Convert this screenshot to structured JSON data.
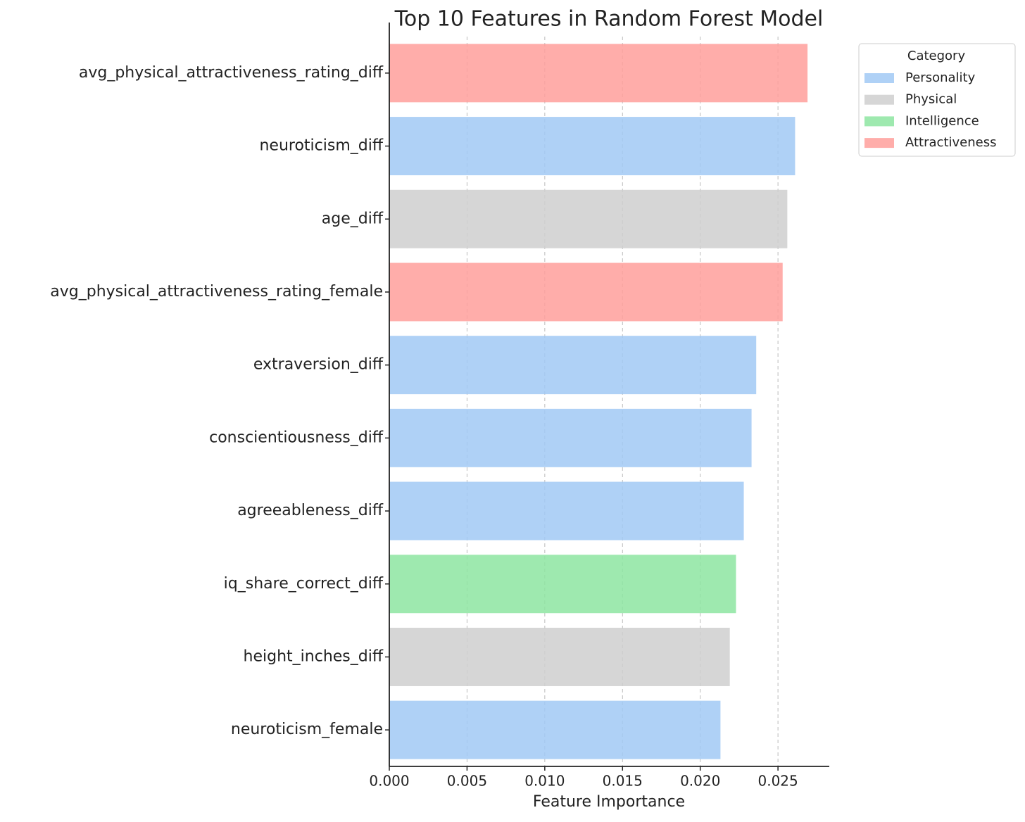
{
  "chart_data": {
    "type": "barh",
    "title": "Top 10 Features in Random Forest Model",
    "x_label": "Feature Importance",
    "categories": [
      "avg_physical_attractiveness_rating_diff",
      "neuroticism_diff",
      "age_diff",
      "avg_physical_attractiveness_rating_female",
      "extraversion_diff",
      "conscientiousness_diff",
      "agreeableness_diff",
      "iq_share_correct_diff",
      "height_inches_diff",
      "neuroticism_female"
    ],
    "values": [
      0.0269,
      0.0261,
      0.0256,
      0.0253,
      0.0236,
      0.0233,
      0.0228,
      0.0223,
      0.0219,
      0.0213
    ],
    "colors": [
      "#ff9f9b",
      "#a1c9f4",
      "#cfcfcf",
      "#ff9f9b",
      "#a1c9f4",
      "#a1c9f4",
      "#a1c9f4",
      "#8de5a1",
      "#cfcfcf",
      "#a1c9f4"
    ],
    "xlim": [
      0,
      0.0283
    ],
    "xticks": [
      {
        "value": 0,
        "label": "0.000"
      },
      {
        "value": 0.005,
        "label": "0.005"
      },
      {
        "value": 0.01,
        "label": "0.010"
      },
      {
        "value": 0.015,
        "label": "0.015"
      },
      {
        "value": 0.02,
        "label": "0.020"
      },
      {
        "value": 0.025,
        "label": "0.025"
      }
    ],
    "grid": "x",
    "legend": {
      "title": "Category",
      "position": "outside-upper-right",
      "entries": [
        {
          "name": "Personality",
          "color": "#a1c9f4"
        },
        {
          "name": "Physical",
          "color": "#cfcfcf"
        },
        {
          "name": "Intelligence",
          "color": "#8de5a1"
        },
        {
          "name": "Attractiveness",
          "color": "#ff9f9b"
        }
      ]
    }
  }
}
